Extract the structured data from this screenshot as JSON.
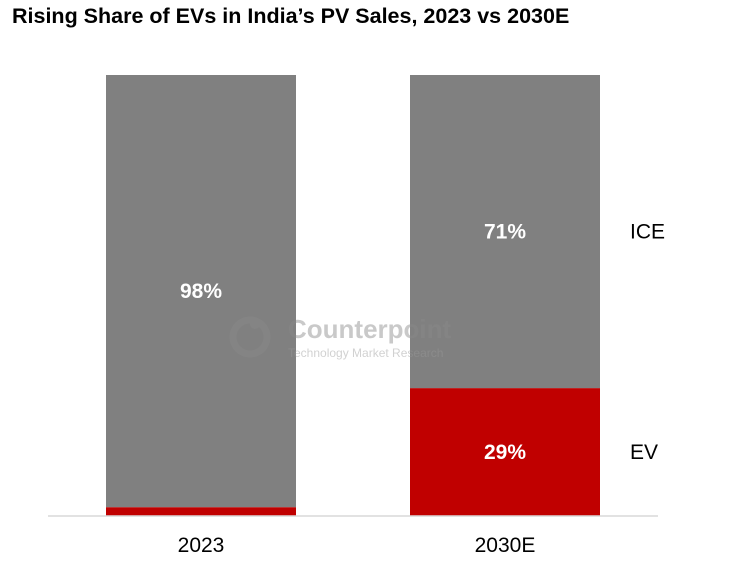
{
  "chart_data": {
    "type": "bar",
    "stacked": true,
    "title": "Rising Share of EVs in India’s PV Sales, 2023 vs 2030E",
    "categories": [
      "2023",
      "2030E"
    ],
    "series": [
      {
        "name": "EV",
        "values": [
          2,
          29
        ],
        "labels": [
          "",
          "29%"
        ],
        "color": "#c00000"
      },
      {
        "name": "ICE",
        "values": [
          98,
          71
        ],
        "labels": [
          "98%",
          "71%"
        ],
        "color": "#808080"
      }
    ],
    "ylim": [
      0,
      100
    ],
    "grid": false,
    "legend": "right, inline labels"
  },
  "watermark": {
    "brand": "Counterpoint",
    "tagline": "Technology Market Research"
  }
}
